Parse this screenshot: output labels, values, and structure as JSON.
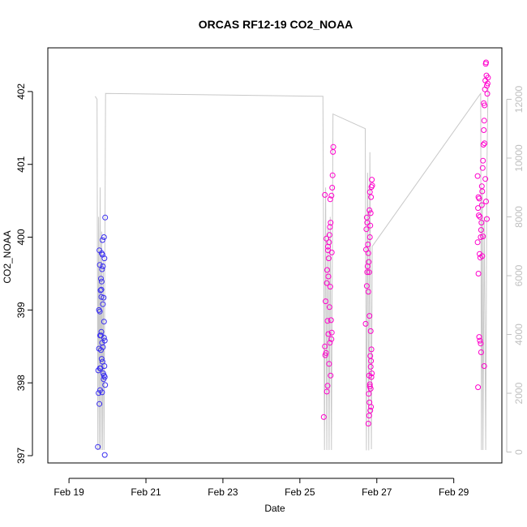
{
  "chart_data": {
    "type": "scatter",
    "title": "ORCAS RF12-19 CO2_NOAA",
    "xlabel": "Date",
    "ylabel": "CO2_NOAA",
    "x_ticks": [
      "Feb 19",
      "Feb 21",
      "Feb 23",
      "Feb 25",
      "Feb 27",
      "Feb 29"
    ],
    "y_ticks": [
      "397",
      "398",
      "399",
      "400",
      "401",
      "402"
    ],
    "y2_ticks": [
      "0",
      "2000",
      "4000",
      "6000",
      "8000",
      "10000",
      "12000"
    ],
    "xlim": [
      -0.55,
      11.25
    ],
    "ylim": [
      396.9,
      402.6
    ],
    "y2lim": [
      -370,
      13750
    ],
    "colors": {
      "early": "#3a2ff0",
      "late": "#ff00cc",
      "line": "#c8c8c8",
      "frame": "#000000",
      "right_axis": "#bfbfbf"
    },
    "series": [
      {
        "values": [
          {
            "x": 0.75,
            "y": 397.12
          },
          {
            "x": 0.77,
            "y": 397.86
          },
          {
            "x": 0.79,
            "y": 397.71
          },
          {
            "x": 0.76,
            "y": 398.17
          },
          {
            "x": 0.8,
            "y": 398.2
          },
          {
            "x": 0.78,
            "y": 398.47
          },
          {
            "x": 0.81,
            "y": 398.65
          },
          {
            "x": 0.83,
            "y": 398.65
          },
          {
            "x": 0.78,
            "y": 399.0
          },
          {
            "x": 0.82,
            "y": 399.27
          },
          {
            "x": 0.84,
            "y": 399.28
          },
          {
            "x": 0.83,
            "y": 399.43
          },
          {
            "x": 0.8,
            "y": 399.62
          },
          {
            "x": 0.85,
            "y": 399.78
          },
          {
            "x": 0.87,
            "y": 399.76
          },
          {
            "x": 0.79,
            "y": 399.82
          },
          {
            "x": 0.86,
            "y": 399.56
          },
          {
            "x": 0.88,
            "y": 399.6
          },
          {
            "x": 0.85,
            "y": 399.39
          },
          {
            "x": 0.9,
            "y": 399.17
          },
          {
            "x": 0.88,
            "y": 399.08
          },
          {
            "x": 0.84,
            "y": 398.7
          },
          {
            "x": 0.86,
            "y": 398.55
          },
          {
            "x": 0.83,
            "y": 398.45
          },
          {
            "x": 0.85,
            "y": 398.33
          },
          {
            "x": 0.87,
            "y": 398.29
          },
          {
            "x": 0.82,
            "y": 398.2
          },
          {
            "x": 0.89,
            "y": 398.13
          },
          {
            "x": 0.91,
            "y": 398.1
          },
          {
            "x": 0.9,
            "y": 398.05
          },
          {
            "x": 0.93,
            "y": 398.08
          },
          {
            "x": 0.86,
            "y": 397.87
          },
          {
            "x": 0.92,
            "y": 398.23
          },
          {
            "x": 0.91,
            "y": 398.62
          },
          {
            "x": 0.93,
            "y": 398.58
          },
          {
            "x": 0.91,
            "y": 398.84
          },
          {
            "x": 0.92,
            "y": 399.71
          },
          {
            "x": 0.91,
            "y": 400.0
          },
          {
            "x": 0.94,
            "y": 400.27
          },
          {
            "x": 0.93,
            "y": 397.01
          },
          {
            "x": 0.88,
            "y": 398.49
          },
          {
            "x": 0.8,
            "y": 398.98
          },
          {
            "x": 0.84,
            "y": 399.18
          },
          {
            "x": 0.87,
            "y": 399.96
          },
          {
            "x": 0.94,
            "y": 397.97
          },
          {
            "x": 0.81,
            "y": 397.9
          }
        ]
      },
      {
        "values": [
          {
            "x": 6.62,
            "y": 397.53
          },
          {
            "x": 6.68,
            "y": 398.41
          },
          {
            "x": 6.65,
            "y": 398.5
          },
          {
            "x": 6.7,
            "y": 397.88
          },
          {
            "x": 6.72,
            "y": 397.96
          },
          {
            "x": 6.67,
            "y": 399.12
          },
          {
            "x": 6.7,
            "y": 399.37
          },
          {
            "x": 6.74,
            "y": 399.46
          },
          {
            "x": 6.71,
            "y": 399.55
          },
          {
            "x": 6.73,
            "y": 399.82
          },
          {
            "x": 6.76,
            "y": 399.93
          },
          {
            "x": 6.77,
            "y": 400.03
          },
          {
            "x": 6.78,
            "y": 400.14
          },
          {
            "x": 6.8,
            "y": 400.2
          },
          {
            "x": 6.75,
            "y": 399.71
          },
          {
            "x": 6.79,
            "y": 399.32
          },
          {
            "x": 6.77,
            "y": 399.04
          },
          {
            "x": 6.81,
            "y": 398.86
          },
          {
            "x": 6.74,
            "y": 398.67
          },
          {
            "x": 6.78,
            "y": 398.55
          },
          {
            "x": 6.82,
            "y": 398.6
          },
          {
            "x": 6.76,
            "y": 398.26
          },
          {
            "x": 6.8,
            "y": 398.1
          },
          {
            "x": 6.83,
            "y": 398.69
          },
          {
            "x": 6.79,
            "y": 400.52
          },
          {
            "x": 6.82,
            "y": 400.57
          },
          {
            "x": 6.84,
            "y": 400.68
          },
          {
            "x": 6.85,
            "y": 400.85
          },
          {
            "x": 6.86,
            "y": 401.17
          },
          {
            "x": 6.87,
            "y": 401.24
          },
          {
            "x": 6.65,
            "y": 400.58
          },
          {
            "x": 6.69,
            "y": 399.98
          },
          {
            "x": 6.73,
            "y": 399.87
          },
          {
            "x": 6.83,
            "y": 399.79
          },
          {
            "x": 6.66,
            "y": 398.38
          },
          {
            "x": 6.72,
            "y": 398.85
          },
          {
            "x": 7.71,
            "y": 398.81
          },
          {
            "x": 7.74,
            "y": 399.33
          },
          {
            "x": 7.75,
            "y": 399.52
          },
          {
            "x": 7.76,
            "y": 399.6
          },
          {
            "x": 7.72,
            "y": 399.83
          },
          {
            "x": 7.77,
            "y": 399.9
          },
          {
            "x": 7.73,
            "y": 400.11
          },
          {
            "x": 7.75,
            "y": 400.2
          },
          {
            "x": 7.74,
            "y": 400.27
          },
          {
            "x": 7.78,
            "y": 399.78
          },
          {
            "x": 7.79,
            "y": 399.66
          },
          {
            "x": 7.8,
            "y": 399.52
          },
          {
            "x": 7.82,
            "y": 400.0
          },
          {
            "x": 7.83,
            "y": 400.16
          },
          {
            "x": 7.81,
            "y": 400.37
          },
          {
            "x": 7.84,
            "y": 400.33
          },
          {
            "x": 7.85,
            "y": 400.55
          },
          {
            "x": 7.86,
            "y": 400.69
          },
          {
            "x": 7.87,
            "y": 400.79
          },
          {
            "x": 7.88,
            "y": 400.71
          },
          {
            "x": 7.82,
            "y": 400.62
          },
          {
            "x": 7.78,
            "y": 399.25
          },
          {
            "x": 7.81,
            "y": 398.92
          },
          {
            "x": 7.84,
            "y": 398.71
          },
          {
            "x": 7.86,
            "y": 398.46
          },
          {
            "x": 7.83,
            "y": 398.37
          },
          {
            "x": 7.85,
            "y": 398.3
          },
          {
            "x": 7.8,
            "y": 398.1
          },
          {
            "x": 7.82,
            "y": 397.98
          },
          {
            "x": 7.84,
            "y": 397.92
          },
          {
            "x": 7.79,
            "y": 397.85
          },
          {
            "x": 7.81,
            "y": 397.73
          },
          {
            "x": 7.83,
            "y": 397.62
          },
          {
            "x": 7.8,
            "y": 397.55
          },
          {
            "x": 7.78,
            "y": 397.44
          },
          {
            "x": 7.85,
            "y": 397.67
          },
          {
            "x": 7.86,
            "y": 398.08
          },
          {
            "x": 7.87,
            "y": 398.13
          },
          {
            "x": 7.84,
            "y": 398.22
          },
          {
            "x": 7.82,
            "y": 397.95
          },
          {
            "x": 10.62,
            "y": 400.84
          },
          {
            "x": 10.64,
            "y": 400.55
          },
          {
            "x": 10.66,
            "y": 400.53
          },
          {
            "x": 10.63,
            "y": 400.4
          },
          {
            "x": 10.65,
            "y": 400.3
          },
          {
            "x": 10.68,
            "y": 400.28
          },
          {
            "x": 10.7,
            "y": 400.0
          },
          {
            "x": 10.62,
            "y": 399.93
          },
          {
            "x": 10.67,
            "y": 399.77
          },
          {
            "x": 10.69,
            "y": 399.72
          },
          {
            "x": 10.64,
            "y": 399.5
          },
          {
            "x": 10.66,
            "y": 398.63
          },
          {
            "x": 10.68,
            "y": 398.58
          },
          {
            "x": 10.7,
            "y": 398.54
          },
          {
            "x": 10.71,
            "y": 398.42
          },
          {
            "x": 10.63,
            "y": 397.94
          },
          {
            "x": 10.72,
            "y": 400.2
          },
          {
            "x": 10.73,
            "y": 400.44
          },
          {
            "x": 10.74,
            "y": 400.63
          },
          {
            "x": 10.75,
            "y": 400.95
          },
          {
            "x": 10.76,
            "y": 401.05
          },
          {
            "x": 10.77,
            "y": 401.27
          },
          {
            "x": 10.78,
            "y": 401.47
          },
          {
            "x": 10.79,
            "y": 401.6
          },
          {
            "x": 10.8,
            "y": 401.81
          },
          {
            "x": 10.81,
            "y": 402.03
          },
          {
            "x": 10.82,
            "y": 402.15
          },
          {
            "x": 10.83,
            "y": 402.38
          },
          {
            "x": 10.84,
            "y": 402.4
          },
          {
            "x": 10.85,
            "y": 402.22
          },
          {
            "x": 10.86,
            "y": 402.08
          },
          {
            "x": 10.87,
            "y": 401.97
          },
          {
            "x": 10.78,
            "y": 401.84
          },
          {
            "x": 10.8,
            "y": 401.29
          },
          {
            "x": 10.82,
            "y": 400.8
          },
          {
            "x": 10.84,
            "y": 400.49
          },
          {
            "x": 10.86,
            "y": 400.25
          },
          {
            "x": 10.76,
            "y": 400.01
          },
          {
            "x": 10.74,
            "y": 399.74
          },
          {
            "x": 10.88,
            "y": 402.11
          },
          {
            "x": 10.89,
            "y": 402.19
          },
          {
            "x": 10.79,
            "y": 398.23
          },
          {
            "x": 10.71,
            "y": 400.1
          },
          {
            "x": 10.73,
            "y": 400.7
          }
        ]
      }
    ],
    "secondary_line": {
      "points": [
        [
          0.68,
          12100
        ],
        [
          0.73,
          12000
        ],
        [
          0.75,
          70
        ],
        [
          0.77,
          8000
        ],
        [
          0.79,
          70
        ],
        [
          0.81,
          9000
        ],
        [
          0.83,
          70
        ],
        [
          0.85,
          7500
        ],
        [
          0.87,
          70
        ],
        [
          0.89,
          6500
        ],
        [
          0.91,
          70
        ],
        [
          0.95,
          12200
        ],
        [
          6.6,
          12100
        ],
        [
          6.64,
          70
        ],
        [
          6.67,
          9000
        ],
        [
          6.7,
          70
        ],
        [
          6.73,
          7600
        ],
        [
          6.76,
          70
        ],
        [
          6.79,
          8000
        ],
        [
          6.82,
          70
        ],
        [
          6.86,
          11500
        ],
        [
          7.7,
          11000
        ],
        [
          7.73,
          60
        ],
        [
          7.76,
          9500
        ],
        [
          7.79,
          60
        ],
        [
          7.82,
          10200
        ],
        [
          7.86,
          100
        ],
        [
          7.88,
          7000
        ],
        [
          10.7,
          12200
        ],
        [
          10.72,
          70
        ],
        [
          10.74,
          9000
        ],
        [
          10.76,
          70
        ],
        [
          10.79,
          8000
        ],
        [
          10.83,
          70
        ],
        [
          10.86,
          9500
        ],
        [
          10.89,
          12400
        ]
      ]
    }
  }
}
